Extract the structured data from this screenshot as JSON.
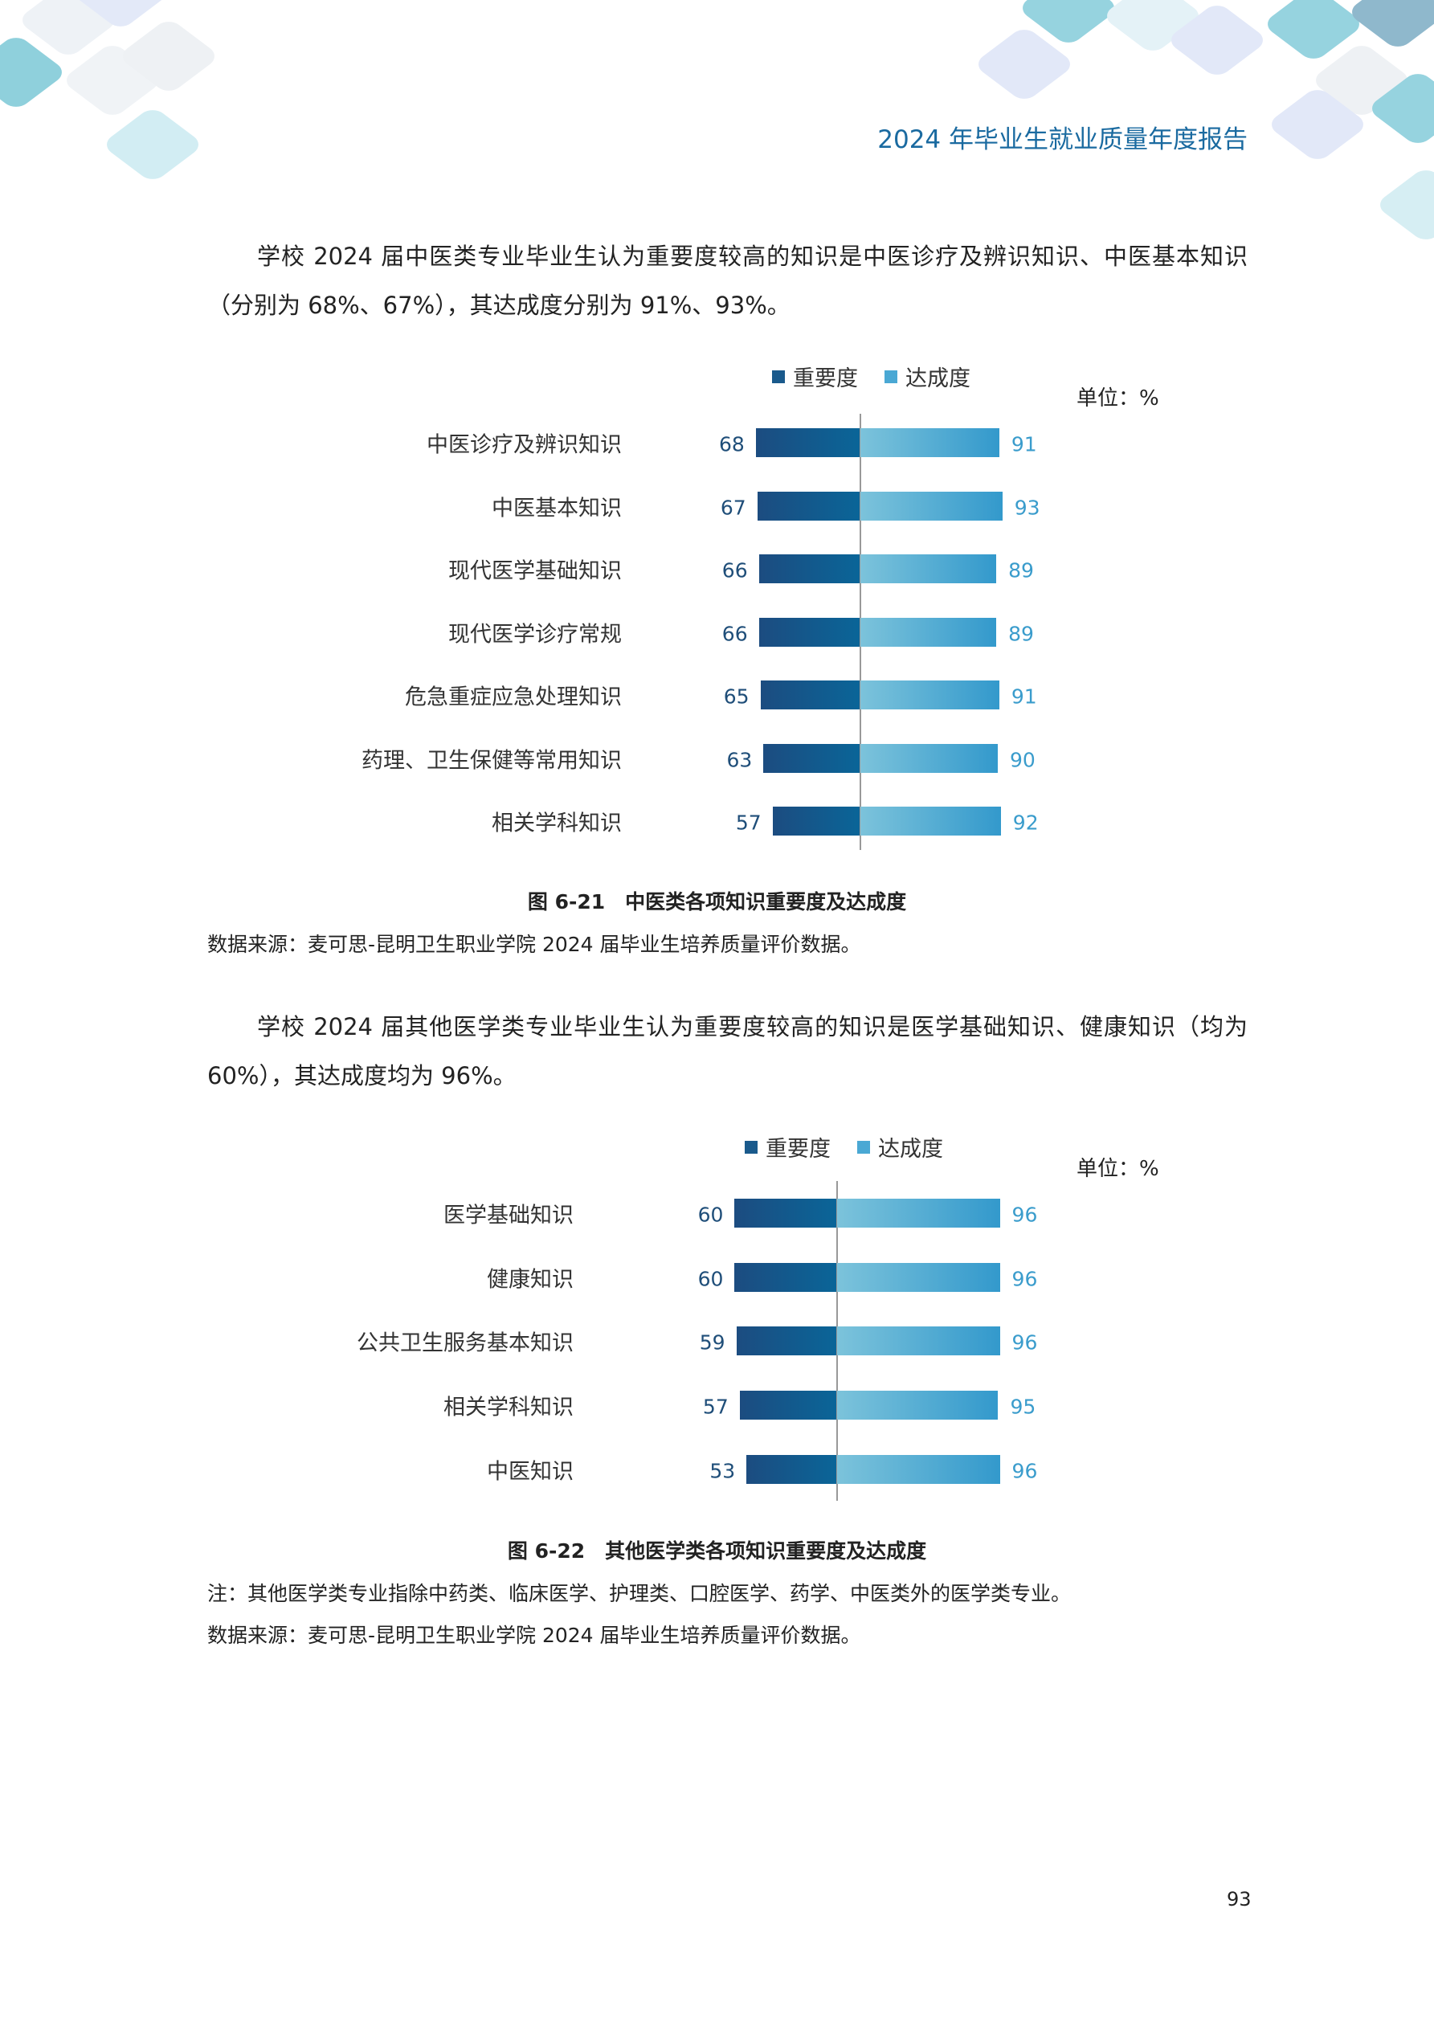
{
  "header": {
    "title": "2024 年毕业生就业质量年度报告"
  },
  "paragraphs": [
    "学校 2024 届中医类专业毕业生认为重要度较高的知识是中医诊疗及辨识知识、中医基本知识（分别为 68%、67%），其达成度分别为 91%、93%。",
    "学校 2024 届其他医学类专业毕业生认为重要度较高的知识是医学基础知识、健康知识（均为 60%），其达成度均为 96%。"
  ],
  "chart_data": [
    {
      "type": "bar",
      "orientation": "horizontal-diverging",
      "unit_label": "单位：%",
      "categories": [
        "中医诊疗及辨识知识",
        "中医基本知识",
        "现代医学基础知识",
        "现代医学诊疗常规",
        "危急重症应急处理知识",
        "药理、卫生保健等常用知识",
        "相关学科知识"
      ],
      "series": [
        {
          "name": "重要度",
          "values": [
            68,
            67,
            66,
            66,
            65,
            63,
            57
          ],
          "color": "#1a5a8c"
        },
        {
          "name": "达成度",
          "values": [
            91,
            93,
            89,
            89,
            91,
            90,
            92
          ],
          "color": "#4aa8d4"
        }
      ],
      "caption": "图 6-21　中医类各项知识重要度及达成度",
      "source": "数据来源：麦可思-昆明卫生职业学院 2024 届毕业生培养质量评价数据。"
    },
    {
      "type": "bar",
      "orientation": "horizontal-diverging",
      "unit_label": "单位：%",
      "categories": [
        "医学基础知识",
        "健康知识",
        "公共卫生服务基本知识",
        "相关学科知识",
        "中医知识"
      ],
      "series": [
        {
          "name": "重要度",
          "values": [
            60,
            60,
            59,
            57,
            53
          ],
          "color": "#1a5a8c"
        },
        {
          "name": "达成度",
          "values": [
            96,
            96,
            96,
            95,
            96
          ],
          "color": "#4aa8d4"
        }
      ],
      "caption": "图 6-22　其他医学类各项知识重要度及达成度",
      "note": "注：其他医学类专业指除中药类、临床医学、护理类、口腔医学、药学、中医类外的医学类专业。",
      "source": "数据来源：麦可思-昆明卫生职业学院 2024 届毕业生培养质量评价数据。"
    }
  ],
  "page_number": "93"
}
